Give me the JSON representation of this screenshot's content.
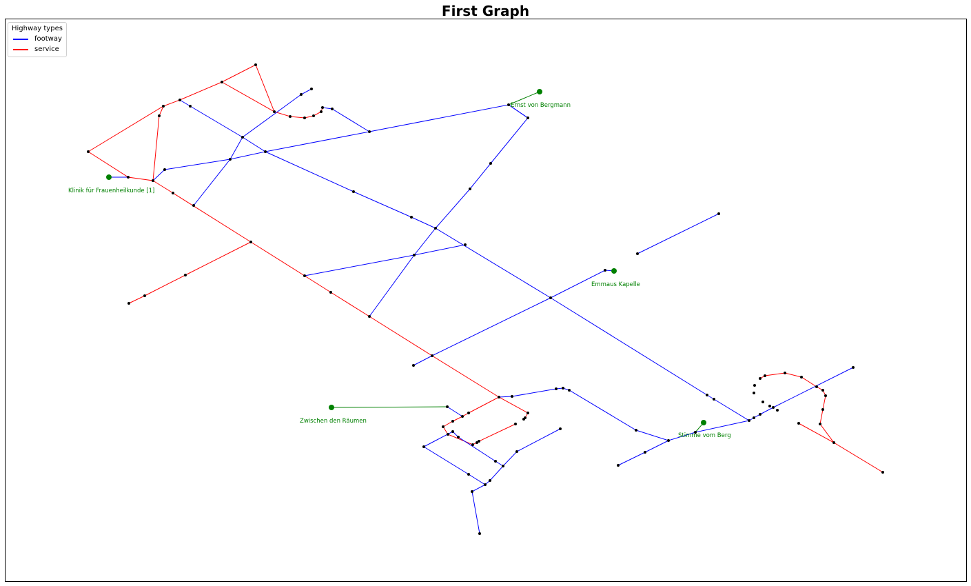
{
  "title": "First Graph",
  "legend": {
    "title": "Highway types",
    "items": [
      {
        "label": "footway",
        "color": "#0000ff"
      },
      {
        "label": "service",
        "color": "#ff0000"
      }
    ]
  },
  "colors": {
    "footway": "#0000ff",
    "service": "#ff0000",
    "poi": "#008000",
    "node": "#000000"
  },
  "pois": [
    {
      "name": "Ernst von Bergmann"
    },
    {
      "name": "Klinik für Frauenheilkunde [1]"
    },
    {
      "name": "Emmaus Kapelle"
    },
    {
      "name": "Zwischen den Räumen"
    },
    {
      "name": "Stimme vom Berg"
    }
  ]
}
